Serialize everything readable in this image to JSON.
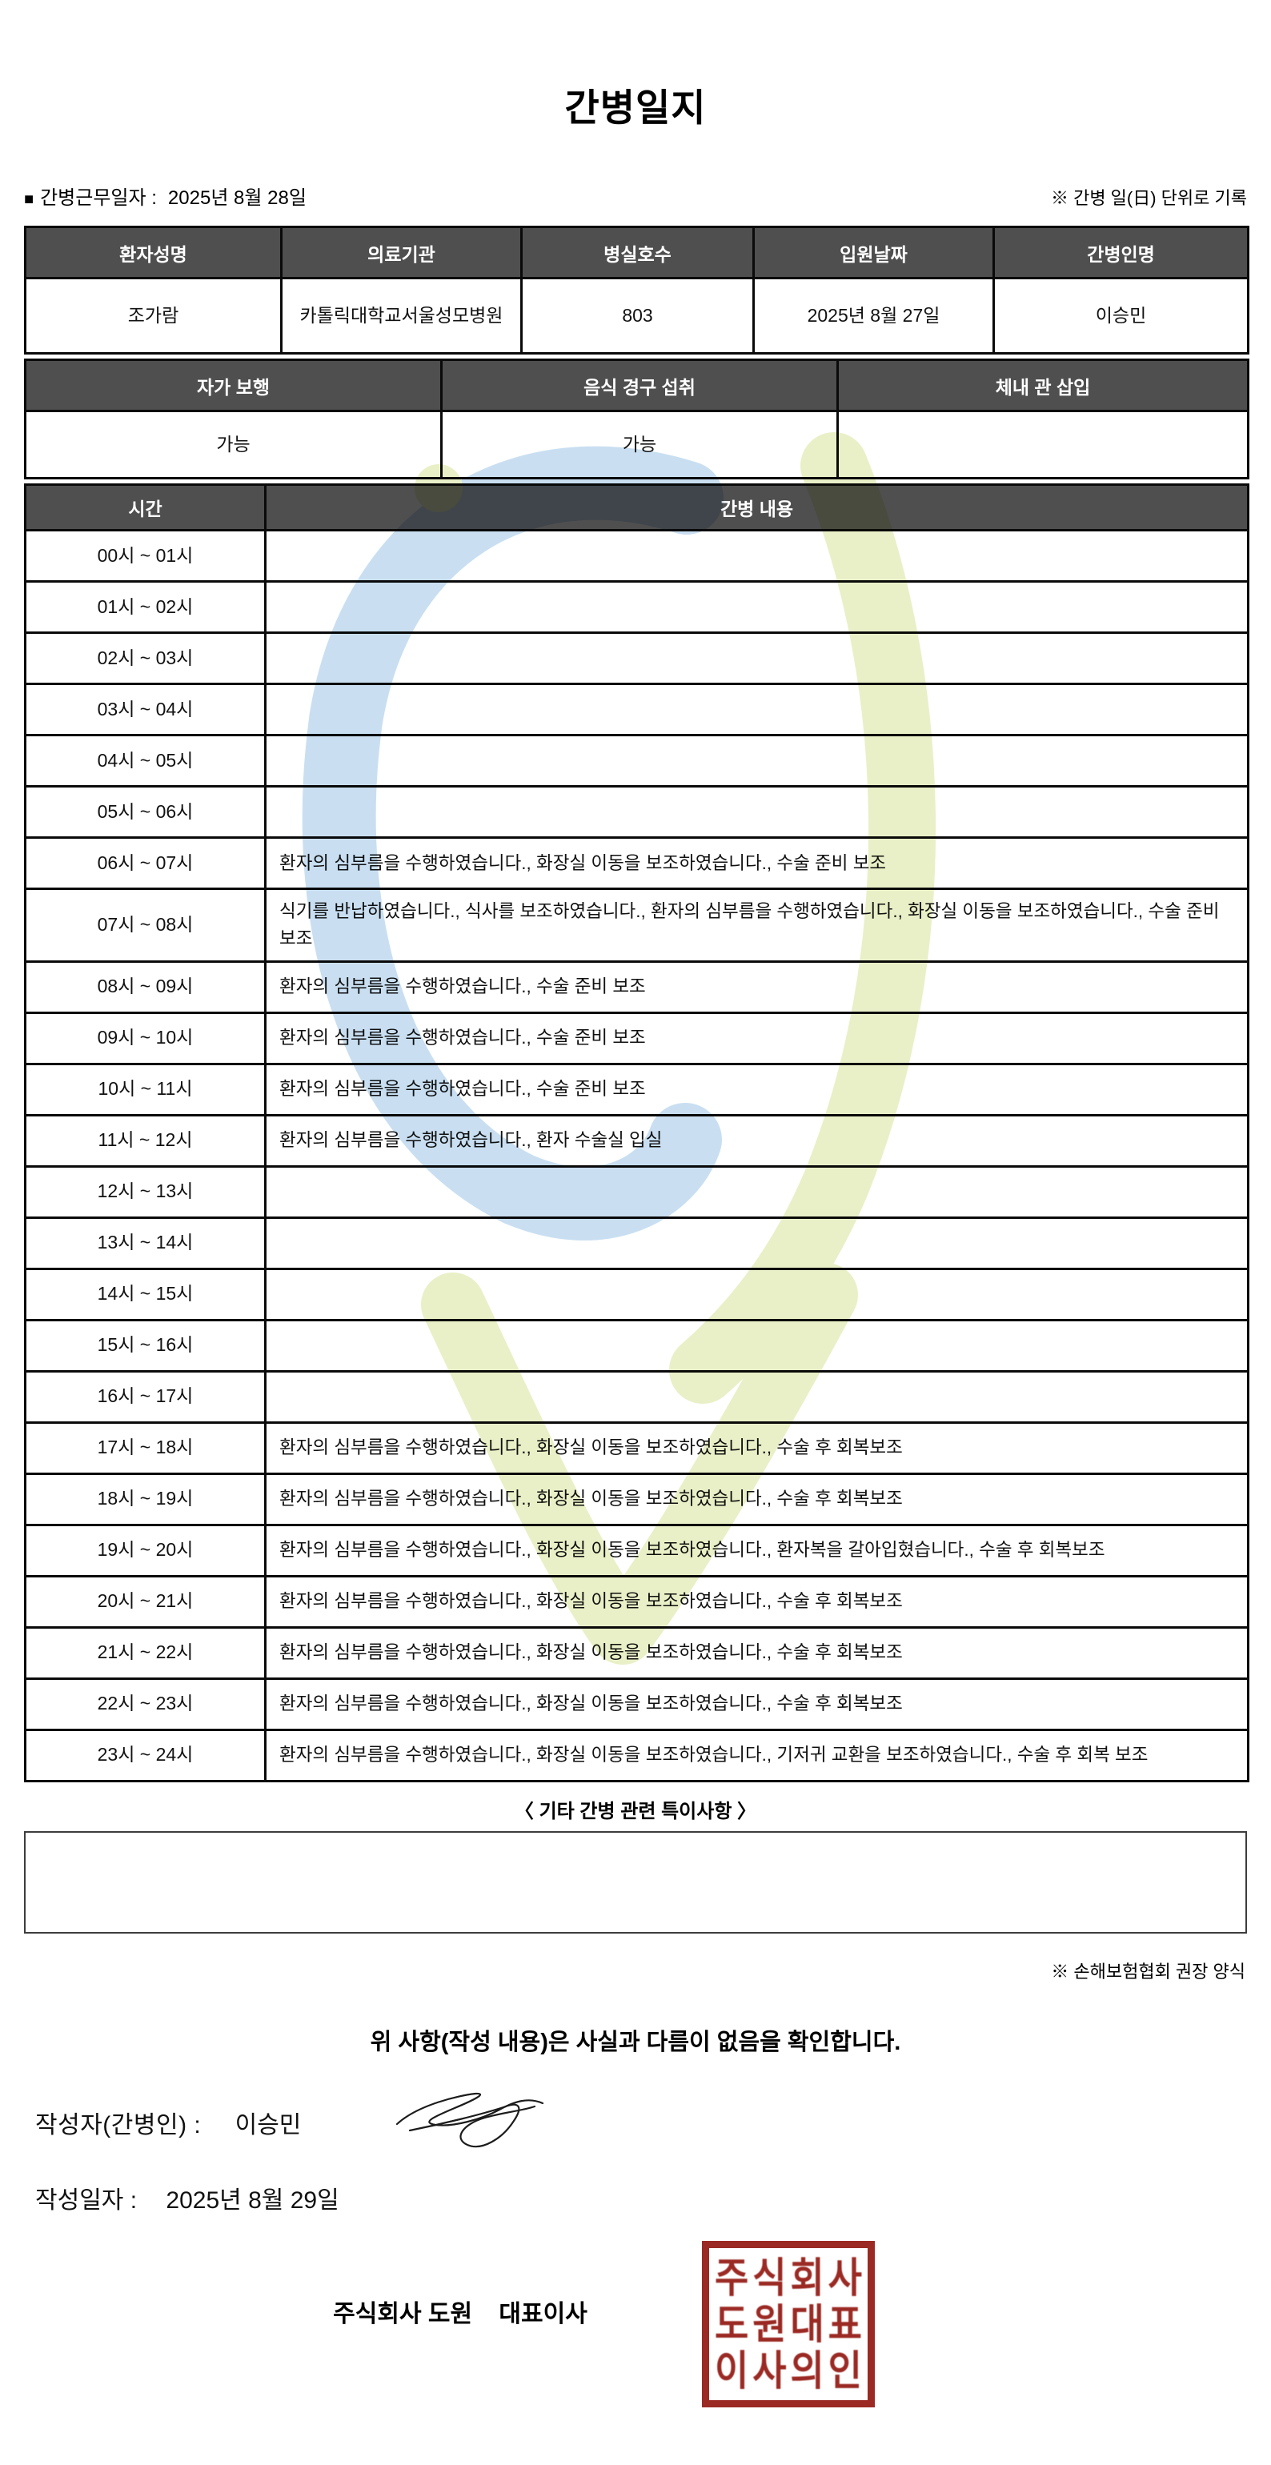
{
  "title": "간병일지",
  "meta": {
    "work_date_label": "간병근무일자  :",
    "work_date": "2025년 8월 28일",
    "unit_note": "※ 간병 일(日) 단위로 기록"
  },
  "patient_table": {
    "headers": [
      "환자성명",
      "의료기관",
      "병실호수",
      "입원날짜",
      "간병인명"
    ],
    "values": [
      "조가람",
      "카톨릭대학교서울성모병원",
      "803",
      "2025년 8월 27일",
      "이승민"
    ]
  },
  "status_table": {
    "headers": [
      "자가 보행",
      "음식 경구 섭취",
      "체내 관 삽입"
    ],
    "values": [
      "가능",
      "가능",
      ""
    ]
  },
  "log_table": {
    "time_header": "시간",
    "content_header": "간병 내용",
    "rows": [
      {
        "time": "00시 ~ 01시",
        "content": ""
      },
      {
        "time": "01시 ~ 02시",
        "content": ""
      },
      {
        "time": "02시 ~ 03시",
        "content": ""
      },
      {
        "time": "03시 ~ 04시",
        "content": ""
      },
      {
        "time": "04시 ~ 05시",
        "content": ""
      },
      {
        "time": "05시 ~ 06시",
        "content": ""
      },
      {
        "time": "06시 ~ 07시",
        "content": "환자의 심부름을 수행하였습니다., 화장실 이동을 보조하였습니다., 수술 준비 보조"
      },
      {
        "time": "07시 ~ 08시",
        "content": "식기를 반납하였습니다., 식사를 보조하였습니다., 환자의 심부름을 수행하였습니다., 화장실 이동을 보조하였습니다., 수술 준비 보조"
      },
      {
        "time": "08시 ~ 09시",
        "content": "환자의 심부름을 수행하였습니다., 수술 준비 보조"
      },
      {
        "time": "09시 ~ 10시",
        "content": "환자의 심부름을 수행하였습니다., 수술 준비 보조"
      },
      {
        "time": "10시 ~ 11시",
        "content": "환자의 심부름을 수행하였습니다., 수술 준비 보조"
      },
      {
        "time": "11시 ~ 12시",
        "content": "환자의 심부름을 수행하였습니다., 환자 수술실 입실"
      },
      {
        "time": "12시 ~ 13시",
        "content": ""
      },
      {
        "time": "13시 ~ 14시",
        "content": ""
      },
      {
        "time": "14시 ~ 15시",
        "content": ""
      },
      {
        "time": "15시 ~ 16시",
        "content": ""
      },
      {
        "time": "16시 ~ 17시",
        "content": ""
      },
      {
        "time": "17시 ~ 18시",
        "content": "환자의 심부름을 수행하였습니다., 화장실 이동을 보조하였습니다., 수술 후 회복보조"
      },
      {
        "time": "18시 ~ 19시",
        "content": "환자의 심부름을 수행하였습니다., 화장실 이동을 보조하였습니다., 수술 후 회복보조"
      },
      {
        "time": "19시 ~ 20시",
        "content": "환자의 심부름을 수행하였습니다., 화장실 이동을 보조하였습니다., 환자복을 갈아입혔습니다., 수술 후 회복보조"
      },
      {
        "time": "20시 ~ 21시",
        "content": "환자의 심부름을 수행하였습니다., 화장실 이동을 보조하였습니다., 수술 후 회복보조"
      },
      {
        "time": "21시 ~ 22시",
        "content": "환자의 심부름을 수행하였습니다., 화장실 이동을 보조하였습니다., 수술 후 회복보조"
      },
      {
        "time": "22시 ~ 23시",
        "content": "환자의 심부름을 수행하였습니다., 화장실 이동을 보조하였습니다., 수술 후 회복보조"
      },
      {
        "time": "23시 ~ 24시",
        "content": "환자의 심부름을 수행하였습니다., 화장실 이동을 보조하였습니다., 기저귀 교환을 보조하였습니다., 수술 후 회복 보조"
      }
    ]
  },
  "notes": {
    "heading": "〈 기타 간병 관련 특이사항 〉",
    "content": "",
    "form_note": "※ 손해보험협회 권장 양식"
  },
  "confirmation": "위 사항(작성 내용)은 사실과 다름이 없음을 확인합니다.",
  "signature": {
    "writer_label": "작성자(간병인) :",
    "writer_name": "이승민",
    "date_label": "작성일자 :",
    "date": "2025년 8월 29일"
  },
  "company": {
    "name_line": "주식회사 도원    대표이사",
    "stamp_lines": [
      "주식회사",
      "도원대표",
      "이사의인"
    ],
    "stamp_color": "#9b2a24"
  },
  "colors": {
    "table_header_bg": "#4f4f4f",
    "table_border": "#0a0a0a",
    "watermark_blue": "#a8cce9",
    "watermark_green": "#dce7a5"
  }
}
